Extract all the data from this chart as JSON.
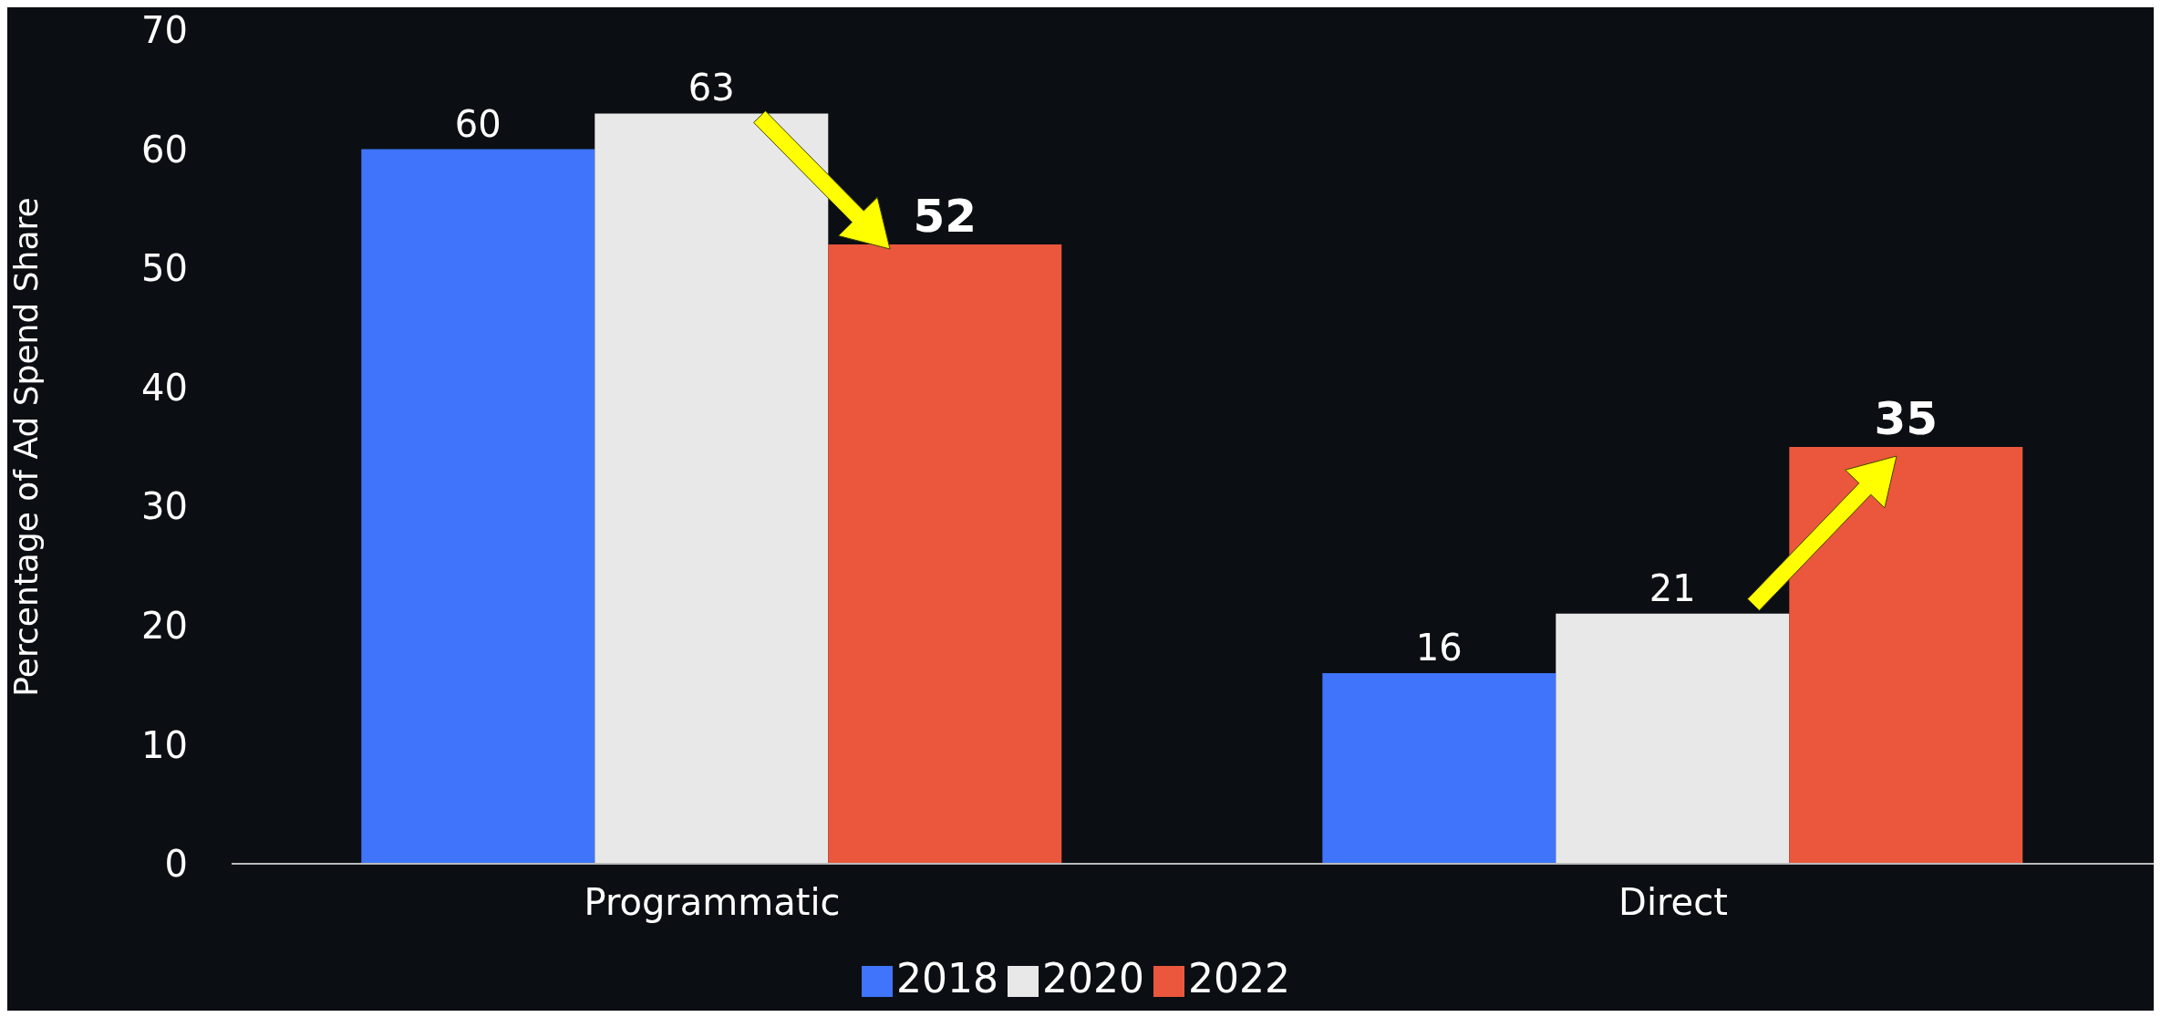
{
  "chart_data": {
    "type": "bar",
    "ylabel": "Percentage of Ad Spend Share",
    "categories": [
      "Programmatic",
      "Direct"
    ],
    "series": [
      {
        "name": "2018",
        "color": "#3f74fb",
        "values": [
          60,
          16
        ]
      },
      {
        "name": "2020",
        "color": "#e8e8e8",
        "values": [
          63,
          21
        ]
      },
      {
        "name": "2022",
        "color": "#ea573d",
        "values": [
          52,
          35
        ]
      }
    ],
    "ylim": [
      0,
      70
    ],
    "yticks": [
      0,
      10,
      20,
      30,
      40,
      50,
      60,
      70
    ],
    "grid": false,
    "legend": "bottom",
    "data_labels": true
  }
}
